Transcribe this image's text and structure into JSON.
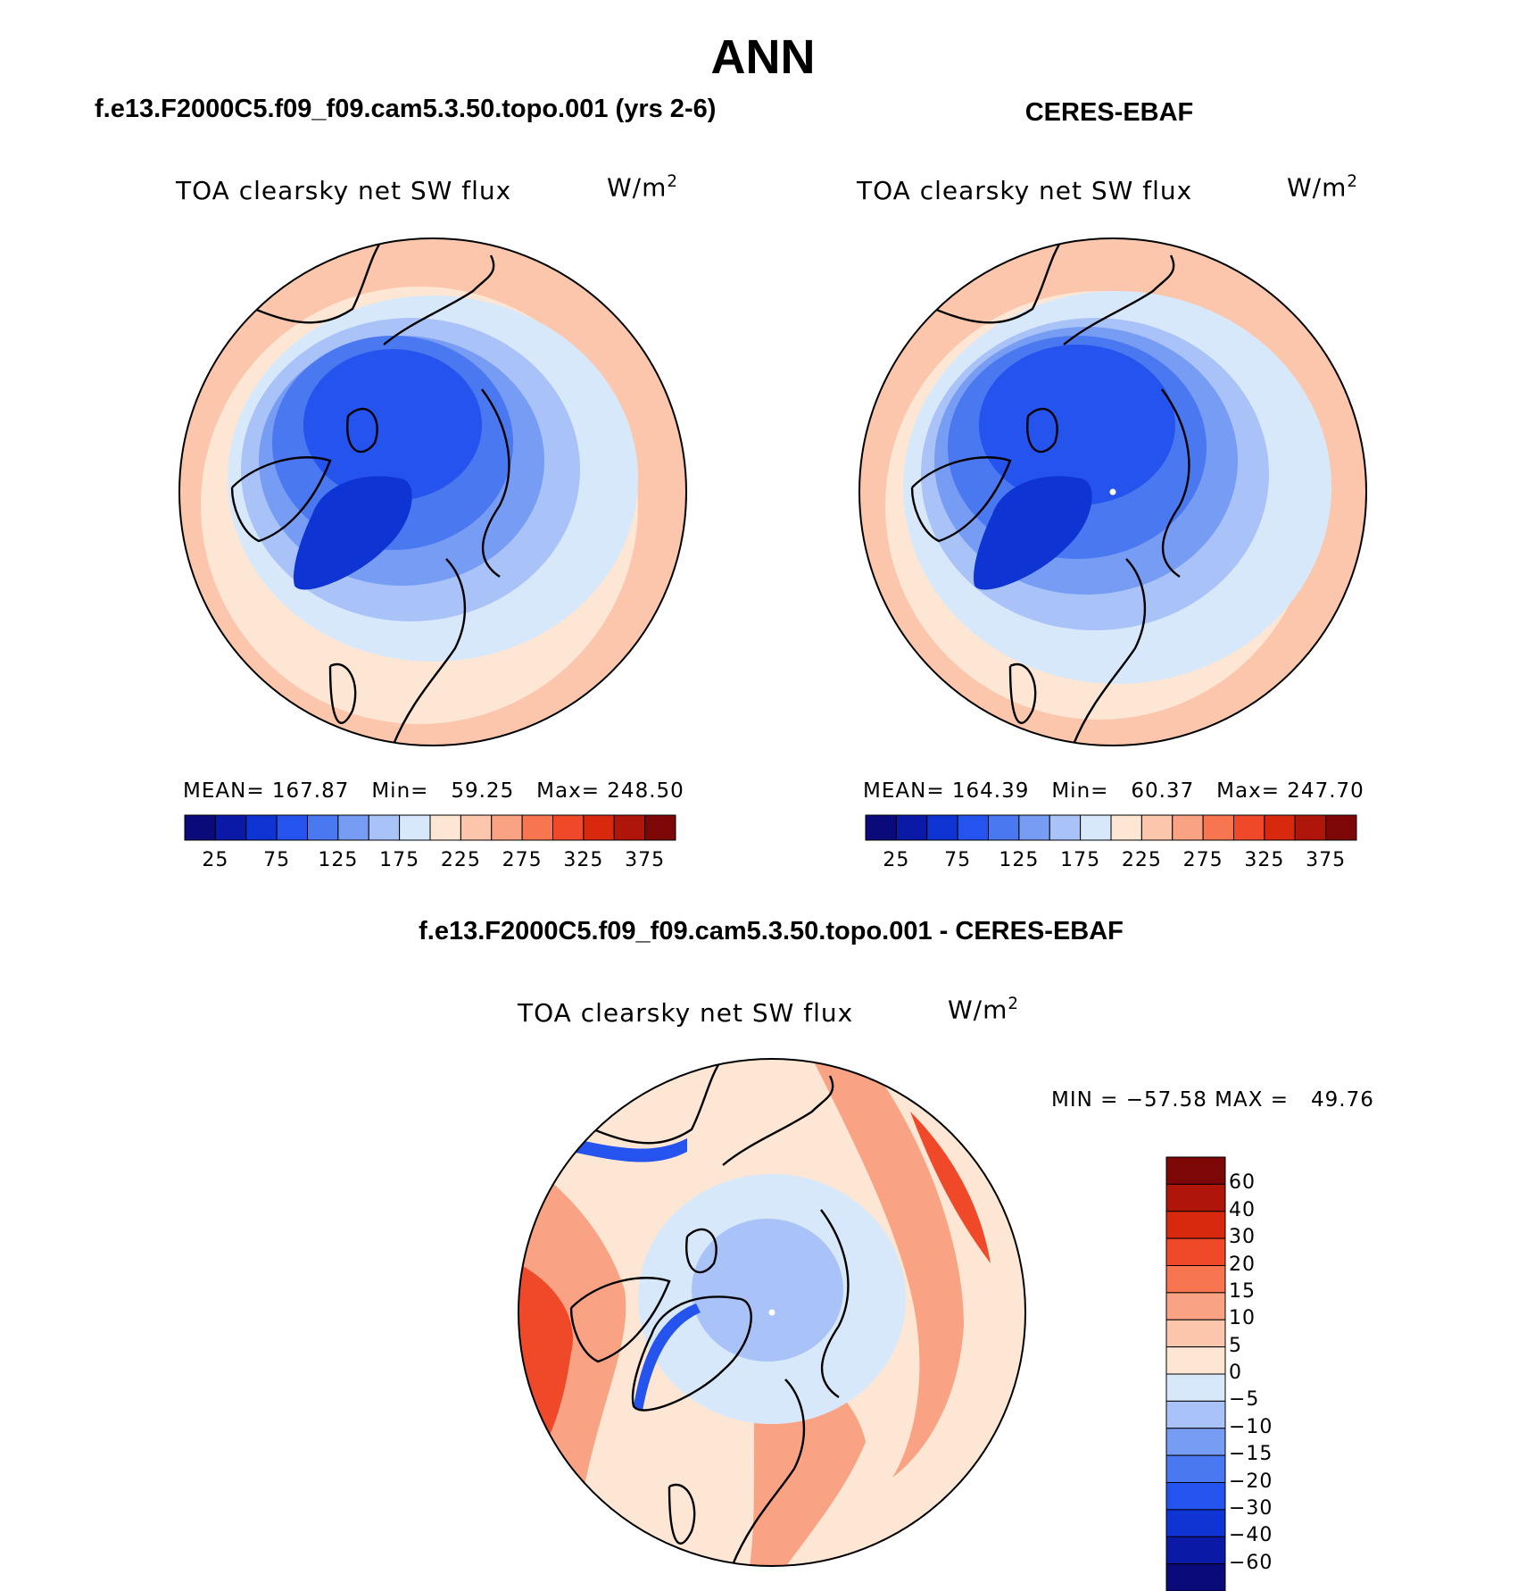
{
  "title": "ANN",
  "panels": [
    {
      "header": "f.e13.F2000C5.f09_f09.cam5.3.50.topo.001 (yrs 2-6)",
      "variable": "TOA clearsky net SW flux",
      "units": "W/m²",
      "stats": {
        "mean_label": "MEAN=",
        "mean": "167.87",
        "min_label": "Min=",
        "min": "59.25",
        "max_label": "Max=",
        "max": "248.50"
      }
    },
    {
      "header": "CERES-EBAF",
      "variable": "TOA clearsky net SW flux",
      "units": "W/m²",
      "stats": {
        "mean_label": "MEAN=",
        "mean": "164.39",
        "min_label": "Min=",
        "min": "60.37",
        "max_label": "Max=",
        "max": "247.70"
      }
    },
    {
      "header": "f.e13.F2000C5.f09_f09.cam5.3.50.topo.001 - CERES-EBAF",
      "variable": "TOA clearsky net SW flux",
      "units": "W/m²",
      "minmax": "MIN = −57.58 MAX =   49.76"
    }
  ],
  "abs_colorbar": {
    "ticks": [
      "25",
      "75",
      "125",
      "175",
      "225",
      "275",
      "325",
      "375"
    ],
    "colors": [
      "#0a0a7a",
      "#0b1aa6",
      "#0f34d4",
      "#2553ee",
      "#4a78f0",
      "#779cf3",
      "#a9c2f7",
      "#d8e8fb",
      "#fde6d3",
      "#fcc6ad",
      "#f9a284",
      "#f7764f",
      "#f0492a",
      "#d8290f",
      "#b0150a",
      "#7d0707"
    ]
  },
  "diff_colorbar": {
    "ticks": [
      "60",
      "40",
      "30",
      "20",
      "15",
      "10",
      "5",
      "0",
      "−5",
      "−10",
      "−15",
      "−20",
      "−30",
      "−40",
      "−60"
    ],
    "colors": [
      "#7d0707",
      "#b0150a",
      "#d8290f",
      "#f0492a",
      "#f7764f",
      "#f9a284",
      "#fcc6ad",
      "#fde6d3",
      "#d8e8fb",
      "#a9c2f7",
      "#779cf3",
      "#4a78f0",
      "#2553ee",
      "#0f34d4",
      "#0b1aa6",
      "#0a0a7a"
    ]
  },
  "map_colors": {
    "outer": "#fcc6ad",
    "ring2": "#fde6d3",
    "ring3": "#d8e8fb",
    "ring4": "#a9c2f7",
    "ring5": "#779cf3",
    "ring6": "#4a78f0",
    "core": "#2553ee",
    "greenland": "#0f34d4",
    "diff_bg": "#fde6d3",
    "diff_warm": "#f9a284",
    "diff_hot": "#f0492a",
    "diff_cool": "#d8e8fb",
    "diff_cold": "#a9c2f7",
    "diff_coldest": "#2553ee"
  }
}
